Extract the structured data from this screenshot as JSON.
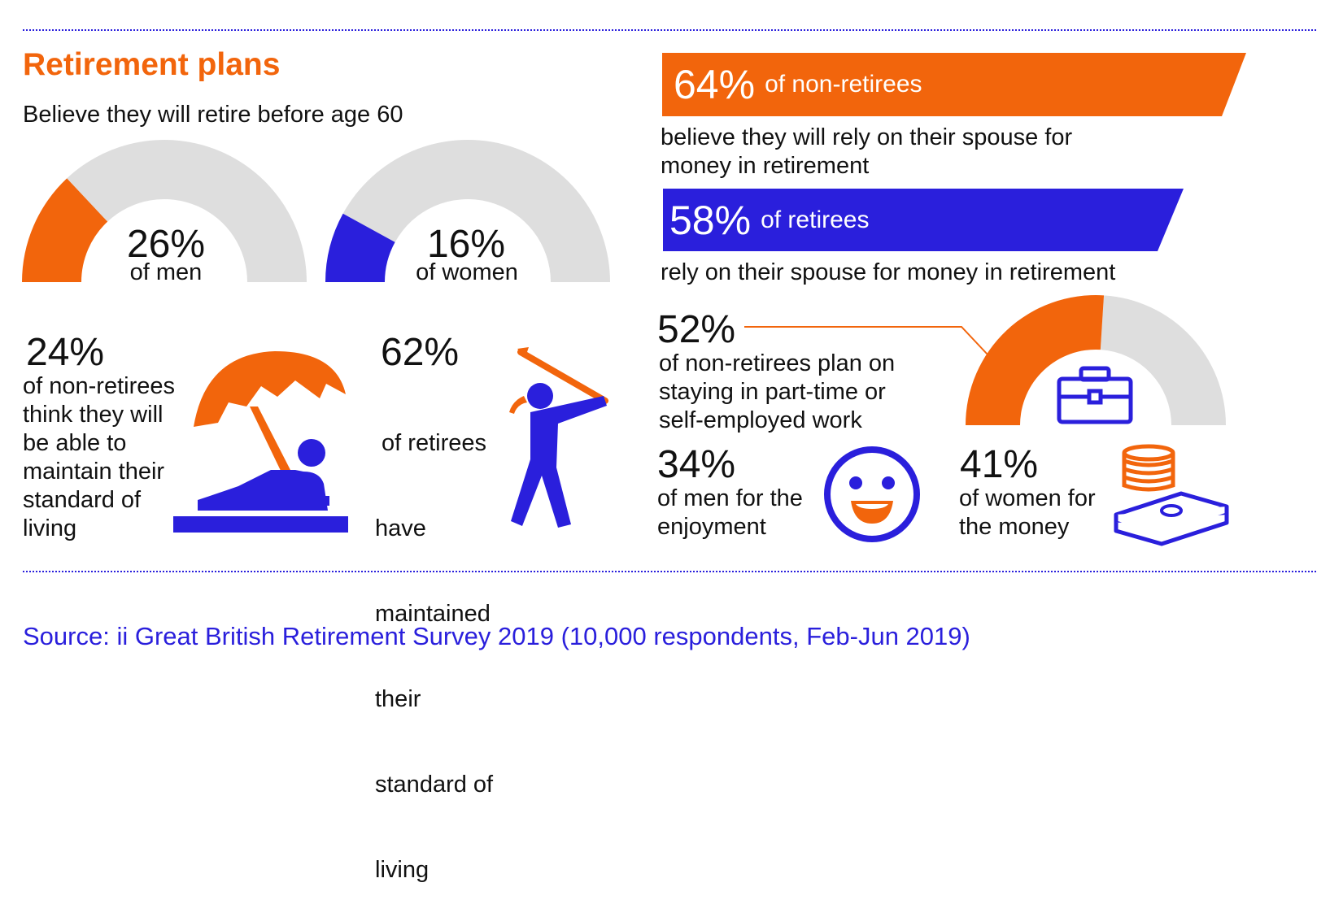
{
  "title": "Retirement plans",
  "colors": {
    "accent": "#f2650c",
    "secondary": "#2a1fdc",
    "track": "#dedede",
    "text": "#111111"
  },
  "gauges_section": {
    "heading": "Believe they will retire before age 60"
  },
  "chart_data": [
    {
      "type": "pie",
      "variant": "half-donut-gauge",
      "value_percent": 26,
      "value_label": "26%",
      "caption": "of men",
      "color": "#f2650c"
    },
    {
      "type": "pie",
      "variant": "half-donut-gauge",
      "value_percent": 16,
      "value_label": "16%",
      "caption": "of women",
      "color": "#2a1fdc"
    },
    {
      "type": "bar",
      "variant": "banner",
      "value_percent": 64,
      "value_label": "64%",
      "label": "of non-retirees",
      "caption": "believe they will rely on their spouse for money in retirement",
      "color": "#f2650c"
    },
    {
      "type": "bar",
      "variant": "banner",
      "value_percent": 58,
      "value_label": "58%",
      "label": "of retirees",
      "caption": "rely on their spouse for money in retirement",
      "color": "#2a1fdc"
    },
    {
      "type": "pie",
      "variant": "half-donut-gauge",
      "value_percent": 52,
      "value_label": "52%",
      "caption": "of non-retirees plan on staying in part-time or self-employed work",
      "color": "#f2650c"
    }
  ],
  "stats": {
    "beach": {
      "percent": "24%",
      "lines": [
        "of non-retirees",
        "think they will",
        "be able to",
        "maintain their",
        "standard of",
        "living"
      ],
      "icon": "beach-umbrella-icon"
    },
    "golf": {
      "percent": "62%",
      "lines": [
        " of retirees",
        "have",
        "maintained",
        "their",
        "standard of",
        "living"
      ],
      "icon": "golfer-icon"
    },
    "work": {
      "lines": [
        "of non-retirees plan on",
        "staying in part-time or",
        "self-employed work"
      ],
      "icon": "briefcase-icon"
    },
    "men": {
      "percent": "34%",
      "lines": [
        "of men for the",
        "enjoyment"
      ],
      "icon": "smiley-face-icon"
    },
    "women": {
      "percent": "41%",
      "lines": [
        "of women for",
        "the money"
      ],
      "icon": "money-stack-icon"
    }
  },
  "banner1_caption_lines": [
    "believe they will rely on their spouse for",
    "money in retirement"
  ],
  "source": "Source: ii Great British Retirement Survey 2019 (10,000 respondents, Feb-Jun 2019)"
}
